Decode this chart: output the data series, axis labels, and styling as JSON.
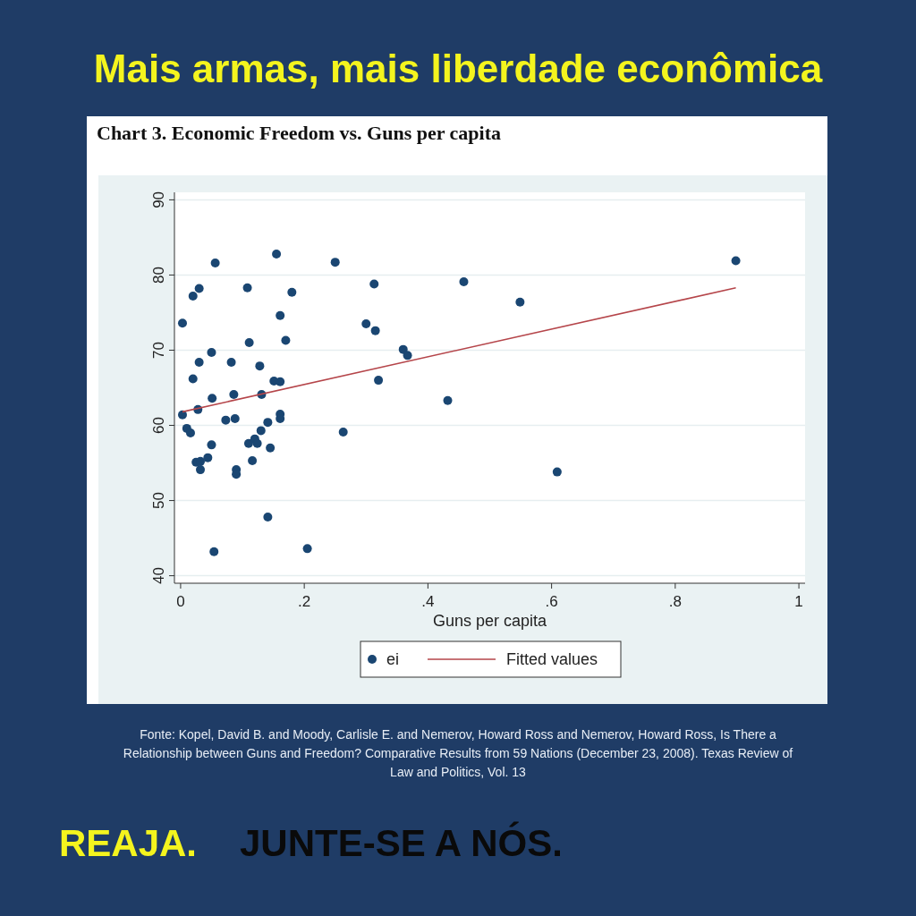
{
  "chart_data": {
    "type": "scatter",
    "title": "Mais armas, mais liberdade econômica",
    "subtitle": "Chart 3. Economic Freedom vs. Guns per capita",
    "xlabel": "Guns per capita",
    "xlim": [
      -0.01,
      1.01
    ],
    "xticks": [
      0,
      {
        "value": 0.2,
        "label": ".2"
      },
      {
        "value": 0.4,
        "label": ".4"
      },
      {
        "value": 0.6,
        "label": ".6"
      },
      {
        "value": 0.8,
        "label": ".8"
      },
      1
    ],
    "ylim": [
      39,
      91
    ],
    "yticks": [
      40,
      50,
      60,
      70,
      80,
      90
    ],
    "grid": "y",
    "legend": "bottom",
    "series": [
      {
        "name": "ei",
        "marker": "circle",
        "color": "#1a4672",
        "x": [
          0.003,
          0.003,
          0.01,
          0.016,
          0.02,
          0.02,
          0.03,
          0.03,
          0.028,
          0.025,
          0.032,
          0.032,
          0.044,
          0.05,
          0.05,
          0.051,
          0.056,
          0.054,
          0.073,
          0.082,
          0.086,
          0.088,
          0.09,
          0.09,
          0.108,
          0.111,
          0.11,
          0.116,
          0.12,
          0.124,
          0.128,
          0.131,
          0.13,
          0.141,
          0.145,
          0.141,
          0.151,
          0.161,
          0.155,
          0.161,
          0.161,
          0.161,
          0.17,
          0.18,
          0.205,
          0.25,
          0.263,
          0.3,
          0.313,
          0.315,
          0.32,
          0.36,
          0.367,
          0.432,
          0.458,
          0.549,
          0.609,
          0.898
        ],
        "values": [
          73.6,
          61.4,
          59.6,
          59.0,
          66.2,
          77.2,
          78.2,
          68.4,
          62.1,
          55.1,
          55.2,
          54.1,
          55.7,
          57.4,
          69.7,
          63.6,
          81.6,
          43.2,
          60.7,
          68.4,
          64.1,
          60.9,
          54.1,
          53.5,
          78.3,
          71.0,
          57.6,
          55.3,
          58.2,
          57.6,
          67.9,
          64.1,
          59.3,
          60.4,
          57.0,
          47.8,
          65.9,
          65.8,
          82.8,
          74.6,
          61.5,
          60.9,
          71.3,
          77.7,
          43.6,
          81.7,
          59.1,
          73.5,
          78.8,
          72.6,
          66.0,
          70.1,
          69.3,
          63.3,
          79.1,
          76.4,
          53.8,
          81.9
        ]
      },
      {
        "name": "Fitted values",
        "type": "line",
        "color": "#b5454a",
        "x": [
          0.003,
          0.898
        ],
        "values": [
          61.8,
          78.3
        ]
      }
    ],
    "annotations": [
      "Fonte: Kopel, David B. and Moody, Carlisle E. and Nemerov, Howard Ross and Nemerov, Howard Ross, Is There a Relationship between Guns and Freedom? Comparative Results from 59 Nations (December 23, 2008). Texas Review of Law and Politics, Vol. 13",
      "REAJA.",
      "JUNTE-SE A NÓS."
    ]
  }
}
